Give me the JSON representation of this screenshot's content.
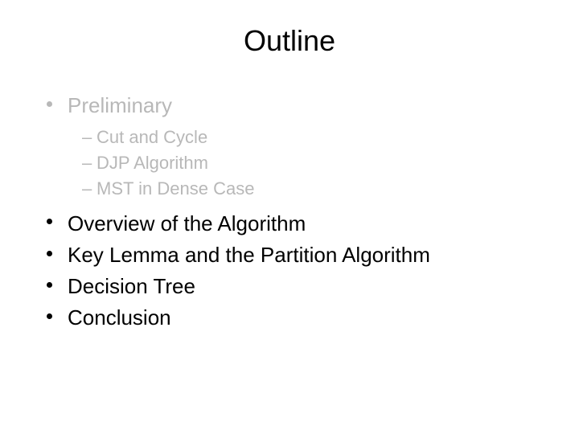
{
  "title": "Outline",
  "items": [
    {
      "label": "Preliminary",
      "dimmed": true,
      "sub": [
        "Cut and Cycle",
        "DJP Algorithm",
        "MST in Dense Case"
      ]
    },
    {
      "label": "Overview of the Algorithm",
      "dimmed": false
    },
    {
      "label": "Key Lemma and the Partition Algorithm",
      "dimmed": false
    },
    {
      "label": "Decision Tree",
      "dimmed": false
    },
    {
      "label": "Conclusion",
      "dimmed": false
    }
  ],
  "colors": {
    "text_normal": "#000000",
    "text_dimmed": "#b8b8b8",
    "background": "#ffffff"
  },
  "typography": {
    "title_fontsize": 36,
    "item_fontsize": 26,
    "subitem_fontsize": 22,
    "font_family": "Arial"
  }
}
